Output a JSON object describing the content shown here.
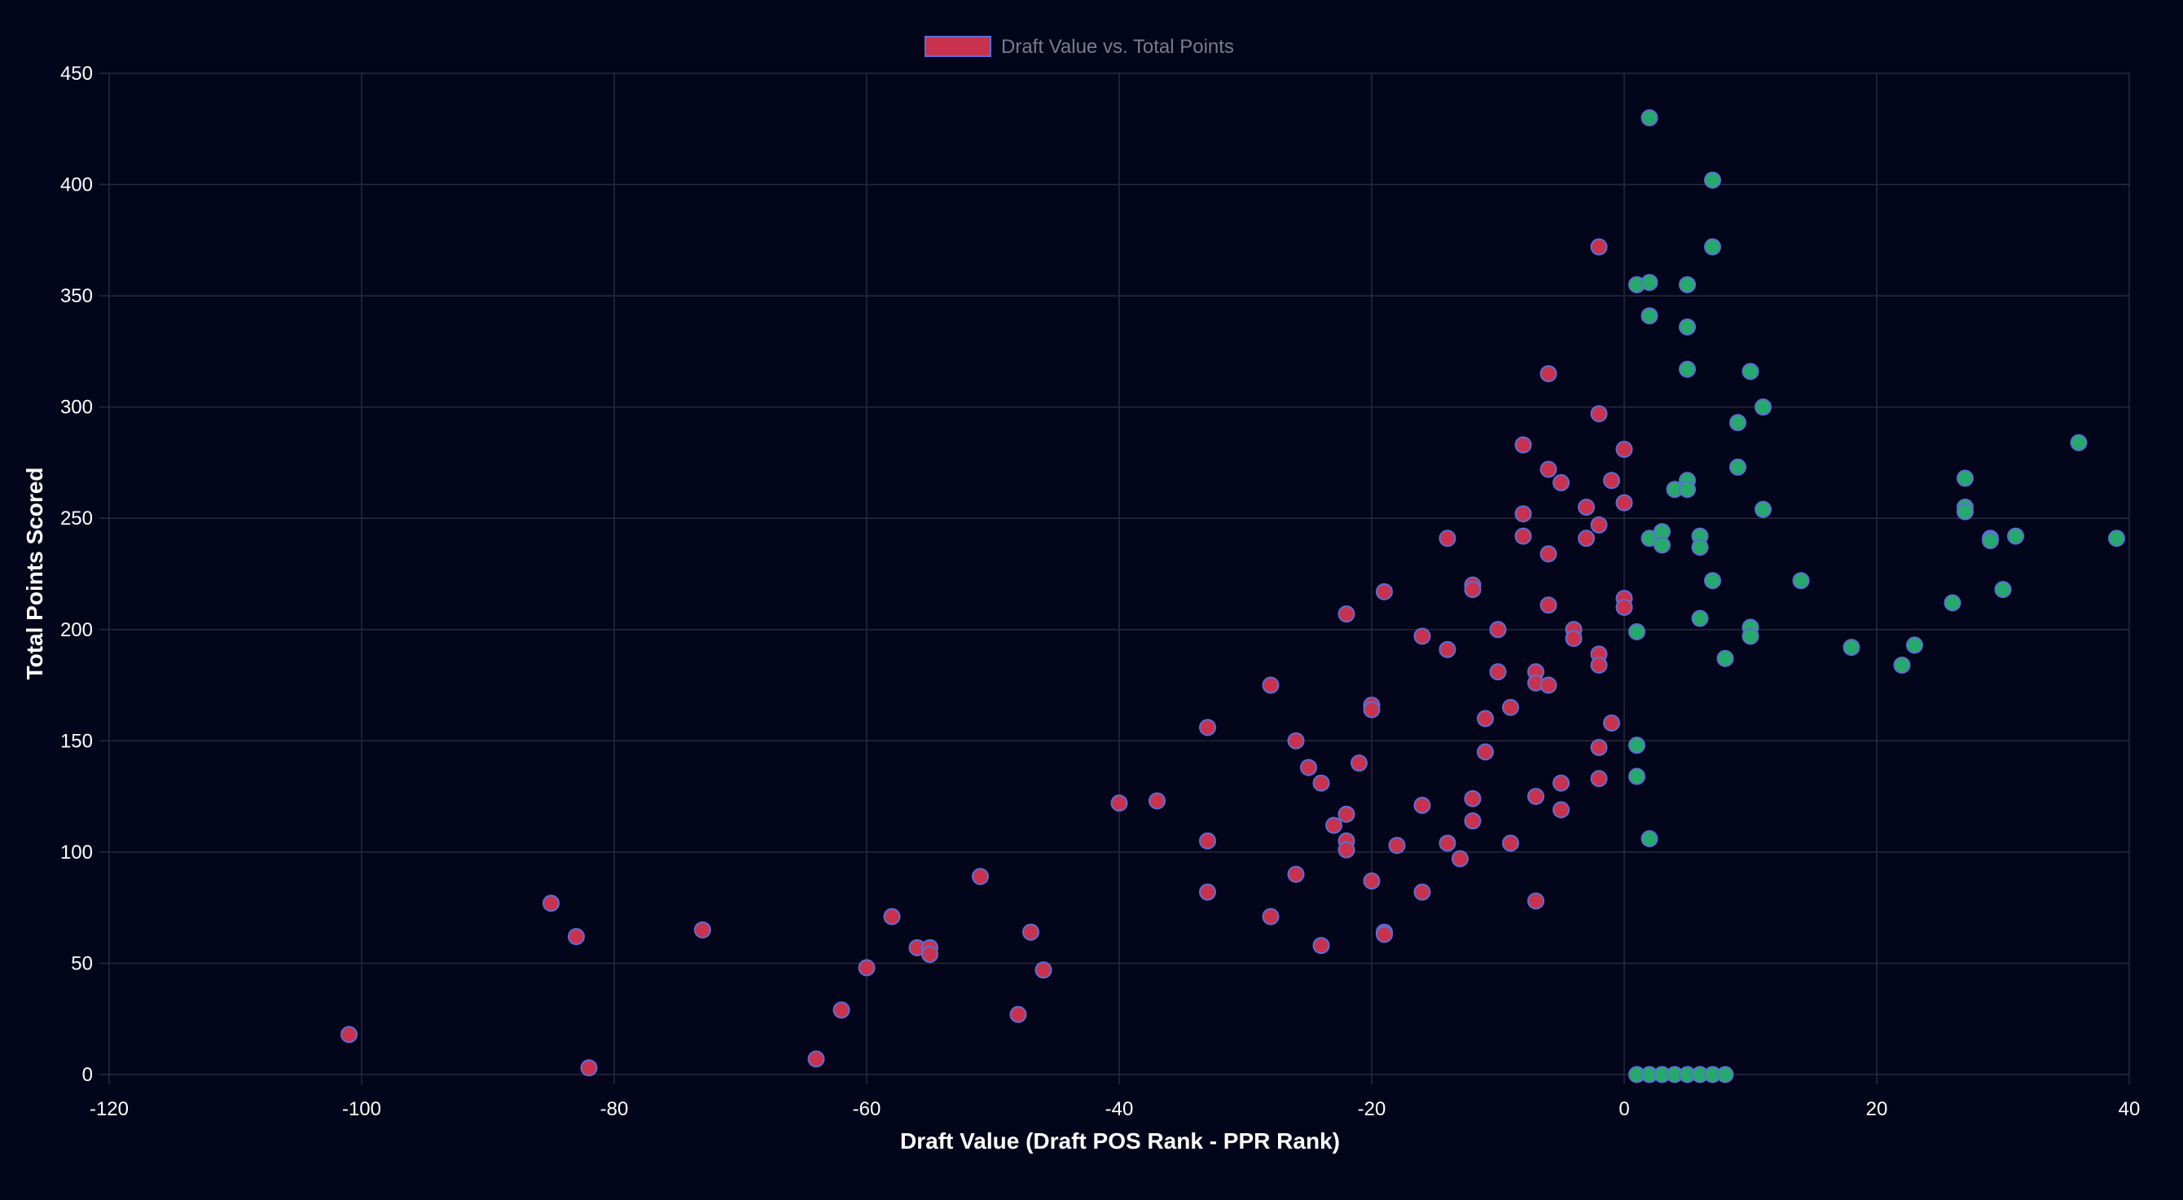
{
  "chart_data": {
    "type": "scatter",
    "title": "",
    "xlabel": "Draft Value (Draft POS Rank - PPR Rank)",
    "ylabel": "Total Points Scored",
    "xlim": [
      -120,
      40
    ],
    "ylim": [
      0,
      450
    ],
    "x_ticks": [
      -120,
      -100,
      -80,
      -60,
      -40,
      -20,
      0,
      20,
      40
    ],
    "y_ticks": [
      0,
      50,
      100,
      150,
      200,
      250,
      300,
      350,
      400,
      450
    ],
    "grid": true,
    "legend_position": "top-center",
    "series": [
      {
        "name": "Draft Value vs. Total Points",
        "color_negative": "#c8324f",
        "color_positive": "#26a96c",
        "border_color": "#5b6fd6",
        "points": [
          [
            -101,
            18
          ],
          [
            -85,
            77
          ],
          [
            -83,
            62
          ],
          [
            -82,
            3
          ],
          [
            -73,
            65
          ],
          [
            -64,
            7
          ],
          [
            -62,
            29
          ],
          [
            -60,
            48
          ],
          [
            -58,
            71
          ],
          [
            -56,
            57
          ],
          [
            -55,
            57
          ],
          [
            -55,
            54
          ],
          [
            -51,
            89
          ],
          [
            -48,
            27
          ],
          [
            -47,
            64
          ],
          [
            -46,
            47
          ],
          [
            -40,
            122
          ],
          [
            -37,
            123
          ],
          [
            -33,
            156
          ],
          [
            -33,
            105
          ],
          [
            -33,
            82
          ],
          [
            -28,
            175
          ],
          [
            -28,
            71
          ],
          [
            -26,
            150
          ],
          [
            -26,
            90
          ],
          [
            -25,
            138
          ],
          [
            -24,
            131
          ],
          [
            -24,
            58
          ],
          [
            -23,
            112
          ],
          [
            -22,
            207
          ],
          [
            -22,
            117
          ],
          [
            -22,
            105
          ],
          [
            -22,
            101
          ],
          [
            -21,
            140
          ],
          [
            -20,
            166
          ],
          [
            -20,
            164
          ],
          [
            -20,
            87
          ],
          [
            -19,
            217
          ],
          [
            -19,
            64
          ],
          [
            -19,
            63
          ],
          [
            -18,
            103
          ],
          [
            -16,
            197
          ],
          [
            -16,
            121
          ],
          [
            -16,
            82
          ],
          [
            -14,
            241
          ],
          [
            -14,
            191
          ],
          [
            -14,
            104
          ],
          [
            -13,
            97
          ],
          [
            -12,
            220
          ],
          [
            -12,
            218
          ],
          [
            -12,
            124
          ],
          [
            -12,
            114
          ],
          [
            -11,
            160
          ],
          [
            -11,
            145
          ],
          [
            -10,
            200
          ],
          [
            -10,
            181
          ],
          [
            -9,
            165
          ],
          [
            -9,
            104
          ],
          [
            -8,
            283
          ],
          [
            -8,
            252
          ],
          [
            -8,
            242
          ],
          [
            -7,
            181
          ],
          [
            -7,
            176
          ],
          [
            -7,
            125
          ],
          [
            -7,
            78
          ],
          [
            -6,
            315
          ],
          [
            -6,
            272
          ],
          [
            -6,
            234
          ],
          [
            -6,
            211
          ],
          [
            -6,
            175
          ],
          [
            -5,
            266
          ],
          [
            -5,
            131
          ],
          [
            -5,
            119
          ],
          [
            -4,
            200
          ],
          [
            -4,
            196
          ],
          [
            -3,
            255
          ],
          [
            -3,
            241
          ],
          [
            -2,
            372
          ],
          [
            -2,
            297
          ],
          [
            -2,
            247
          ],
          [
            -2,
            189
          ],
          [
            -2,
            184
          ],
          [
            -2,
            147
          ],
          [
            -2,
            133
          ],
          [
            -1,
            267
          ],
          [
            -1,
            158
          ],
          [
            0,
            281
          ],
          [
            0,
            257
          ],
          [
            0,
            214
          ],
          [
            0,
            210
          ],
          [
            1,
            355
          ],
          [
            1,
            199
          ],
          [
            1,
            148
          ],
          [
            1,
            134
          ],
          [
            1,
            0
          ],
          [
            2,
            430
          ],
          [
            2,
            356
          ],
          [
            2,
            341
          ],
          [
            2,
            241
          ],
          [
            2,
            106
          ],
          [
            2,
            0
          ],
          [
            3,
            244
          ],
          [
            3,
            238
          ],
          [
            3,
            0
          ],
          [
            4,
            263
          ],
          [
            4,
            0
          ],
          [
            5,
            355
          ],
          [
            5,
            336
          ],
          [
            5,
            317
          ],
          [
            5,
            267
          ],
          [
            5,
            263
          ],
          [
            5,
            0
          ],
          [
            6,
            242
          ],
          [
            6,
            237
          ],
          [
            6,
            205
          ],
          [
            6,
            0
          ],
          [
            7,
            402
          ],
          [
            7,
            372
          ],
          [
            7,
            222
          ],
          [
            7,
            0
          ],
          [
            8,
            187
          ],
          [
            8,
            0
          ],
          [
            9,
            293
          ],
          [
            9,
            273
          ],
          [
            10,
            316
          ],
          [
            10,
            201
          ],
          [
            10,
            197
          ],
          [
            11,
            300
          ],
          [
            11,
            254
          ],
          [
            14,
            222
          ],
          [
            18,
            192
          ],
          [
            22,
            184
          ],
          [
            23,
            193
          ],
          [
            26,
            212
          ],
          [
            27,
            268
          ],
          [
            27,
            255
          ],
          [
            27,
            253
          ],
          [
            29,
            241
          ],
          [
            29,
            240
          ],
          [
            30,
            218
          ],
          [
            31,
            242
          ],
          [
            36,
            284
          ],
          [
            39,
            241
          ]
        ]
      }
    ]
  },
  "colors": {
    "background": "#03051a",
    "grid": "#272a3d",
    "text": "#ffffff",
    "legend_text": "#7a7c8a"
  }
}
